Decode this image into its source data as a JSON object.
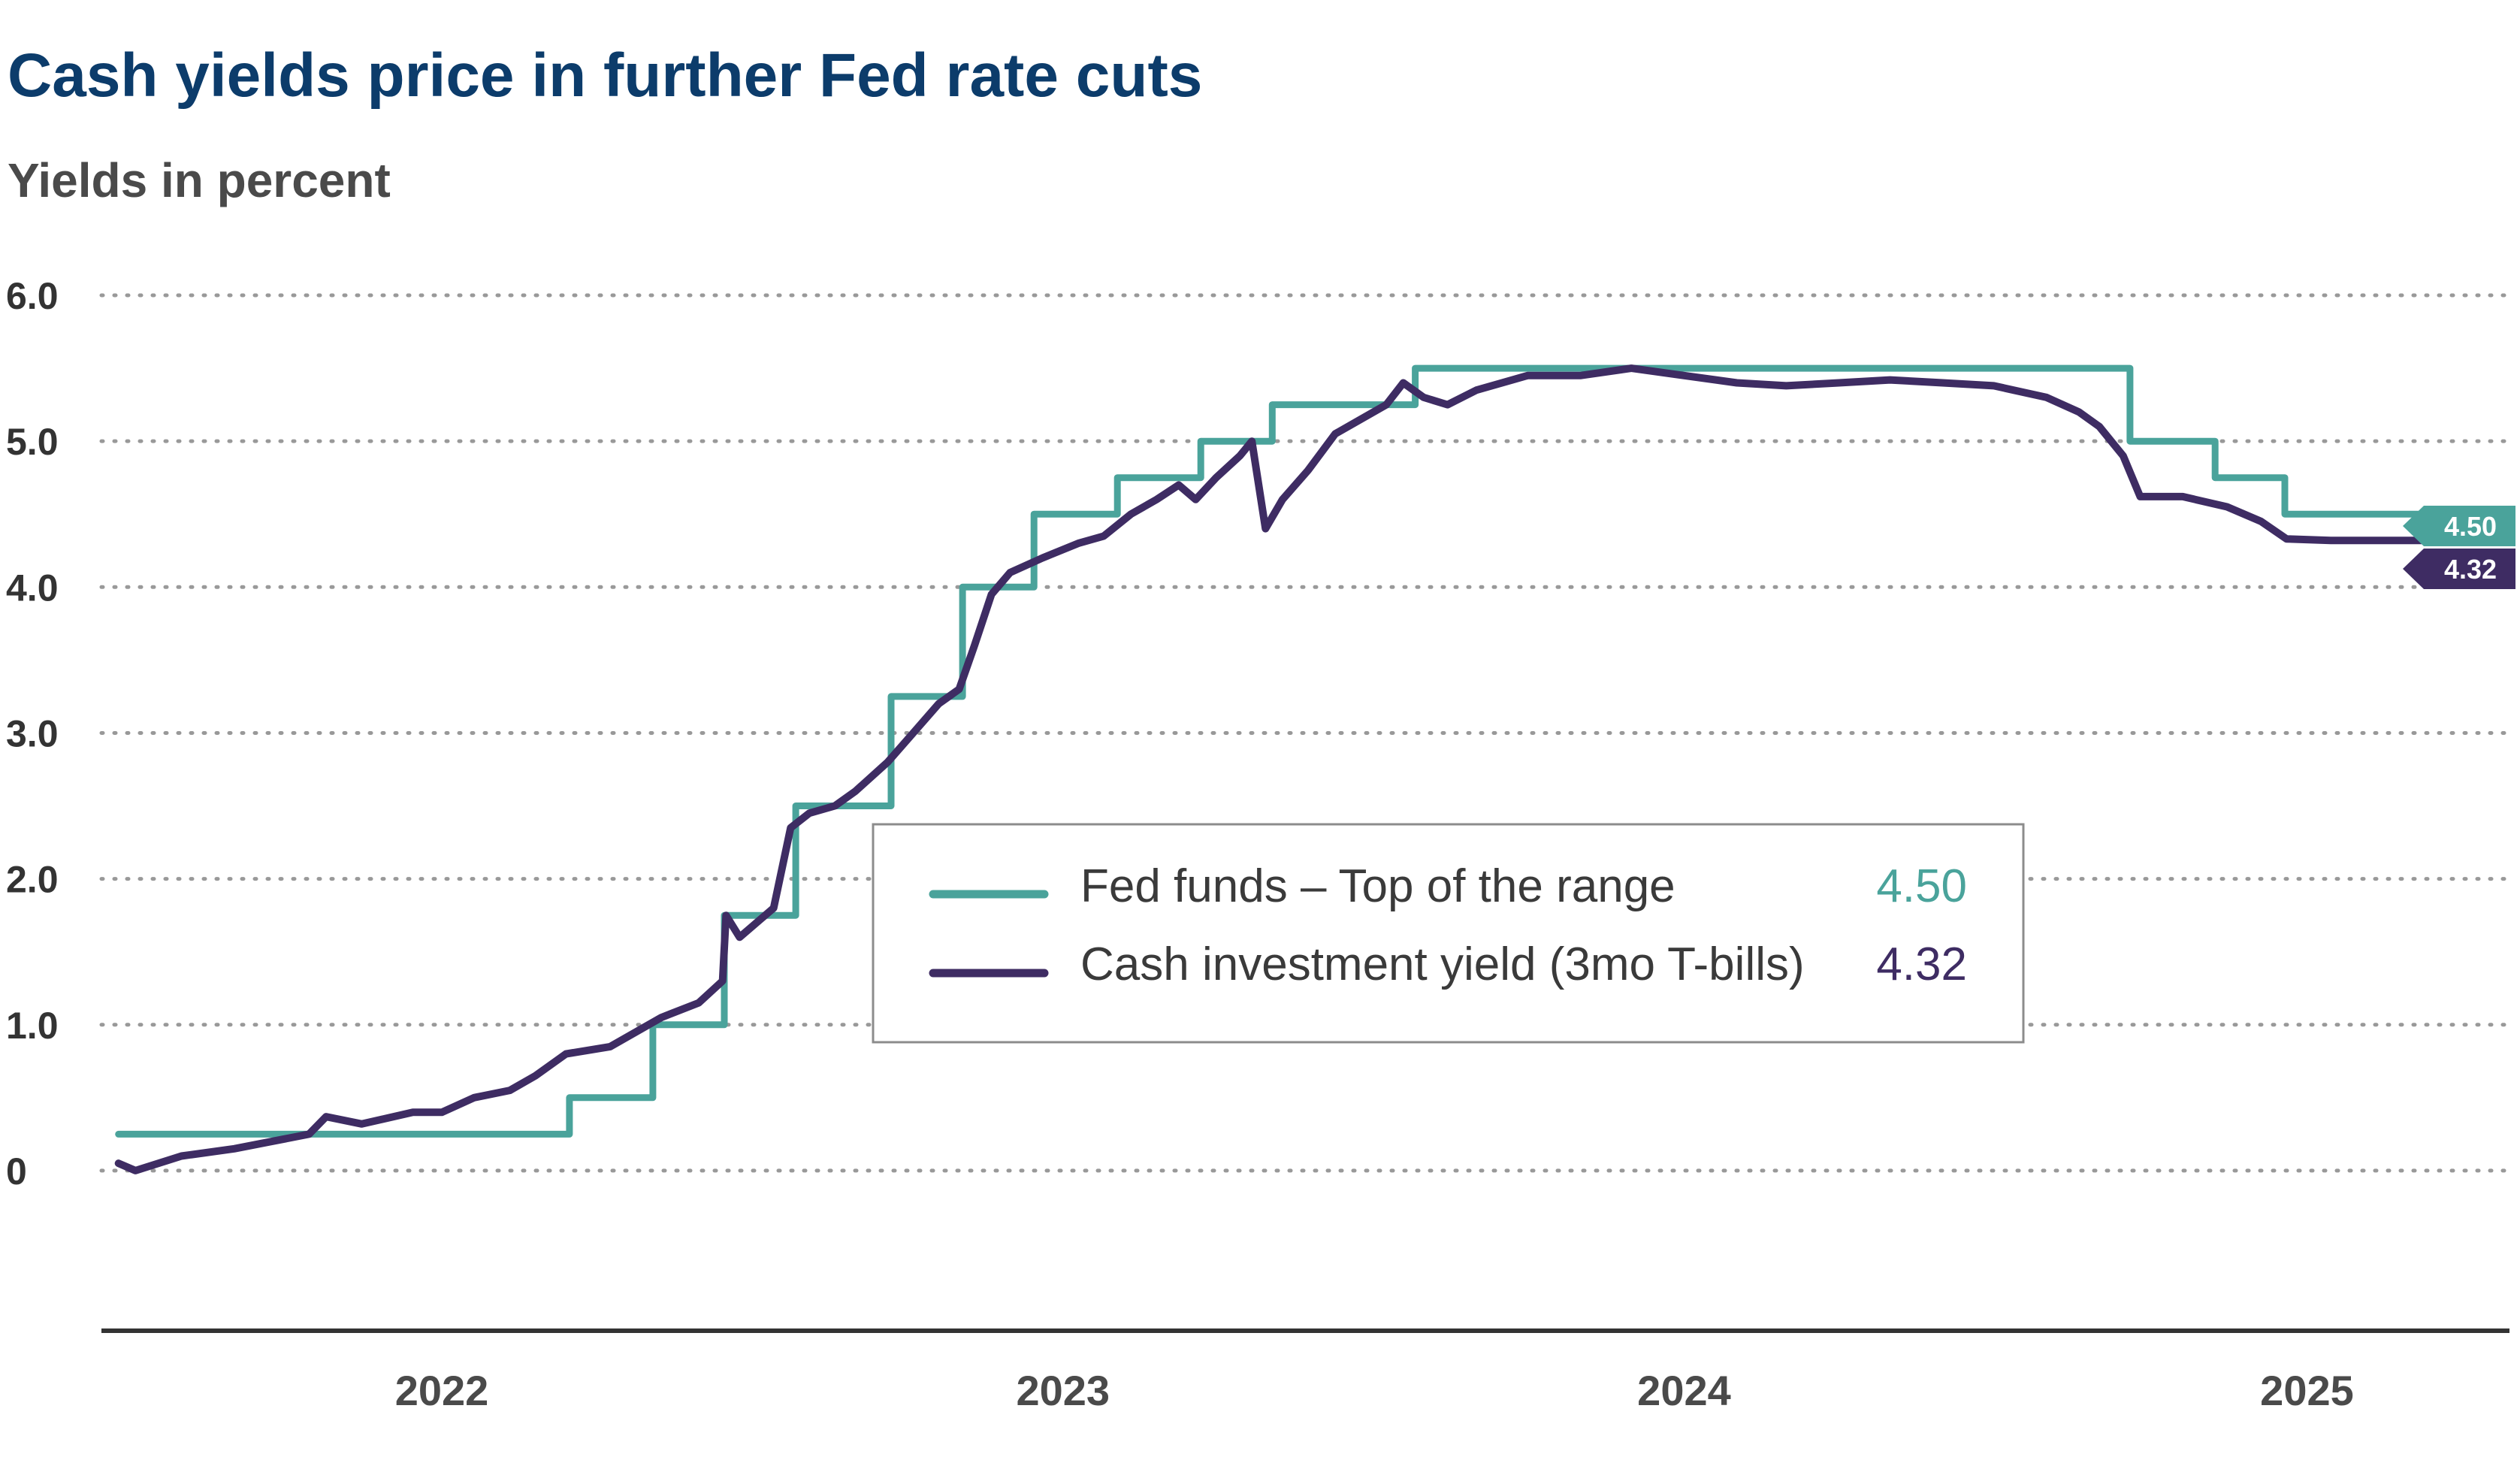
{
  "colors": {
    "fed": "#4AA39B",
    "tbill": "#3E2C63",
    "title": "#0C3C6B",
    "subtitle": "#4a4a4a",
    "grid": "#999999",
    "axis": "#333333"
  },
  "chart_data": {
    "type": "line",
    "title": "Cash yields price in further Fed rate cuts",
    "subtitle": "Yields in percent",
    "xlabel": "",
    "ylabel": "",
    "x_ticks": [
      {
        "label": "2022",
        "value": "2022-01-01"
      },
      {
        "label": "2023",
        "value": "2023-01-01"
      },
      {
        "label": "2024",
        "value": "2024-01-01"
      },
      {
        "label": "2025",
        "value": "2025-01-01"
      }
    ],
    "y_ticks": [
      {
        "label": "0",
        "value": 0
      },
      {
        "label": "1.0",
        "value": 1
      },
      {
        "label": "2.0",
        "value": 2
      },
      {
        "label": "3.0",
        "value": 3
      },
      {
        "label": "4.0",
        "value": 4
      },
      {
        "label": "5.0",
        "value": 5
      },
      {
        "label": "6.0",
        "value": 6
      }
    ],
    "xlim": [
      "2021-06-15",
      "2025-04-30"
    ],
    "ylim": [
      -0.5,
      6.0
    ],
    "grid": true,
    "legend_position": "center",
    "series": [
      {
        "name": "Fed funds – Top of the range",
        "latest": "4.50",
        "step": true,
        "points": [
          [
            "2021-06-25",
            0.25
          ],
          [
            "2022-03-17",
            0.5
          ],
          [
            "2022-05-05",
            1.0
          ],
          [
            "2022-06-16",
            1.75
          ],
          [
            "2022-07-28",
            2.5
          ],
          [
            "2022-09-22",
            3.25
          ],
          [
            "2022-11-03",
            4.0
          ],
          [
            "2022-12-15",
            4.5
          ],
          [
            "2023-02-02",
            4.75
          ],
          [
            "2023-03-23",
            5.0
          ],
          [
            "2023-05-04",
            5.25
          ],
          [
            "2023-07-27",
            5.5
          ],
          [
            "2024-09-19",
            5.0
          ],
          [
            "2024-11-08",
            4.75
          ],
          [
            "2024-12-19",
            4.5
          ],
          [
            "2025-03-31",
            4.5
          ]
        ]
      },
      {
        "name": "Cash investment yield (3mo T-bills)",
        "latest": "4.32",
        "step": false,
        "points": [
          [
            "2021-06-25",
            0.05
          ],
          [
            "2021-07-05",
            0.0
          ],
          [
            "2021-08-01",
            0.1
          ],
          [
            "2021-09-01",
            0.15
          ],
          [
            "2021-10-15",
            0.25
          ],
          [
            "2021-10-25",
            0.37
          ],
          [
            "2021-11-15",
            0.32
          ],
          [
            "2021-12-15",
            0.4
          ],
          [
            "2022-01-01",
            0.4
          ],
          [
            "2022-01-20",
            0.5
          ],
          [
            "2022-02-10",
            0.55
          ],
          [
            "2022-02-25",
            0.65
          ],
          [
            "2022-03-15",
            0.8
          ],
          [
            "2022-04-10",
            0.85
          ],
          [
            "2022-04-25",
            0.95
          ],
          [
            "2022-05-10",
            1.05
          ],
          [
            "2022-06-01",
            1.15
          ],
          [
            "2022-06-15",
            1.3
          ],
          [
            "2022-06-17",
            1.75
          ],
          [
            "2022-06-25",
            1.6
          ],
          [
            "2022-07-15",
            1.8
          ],
          [
            "2022-07-25",
            2.35
          ],
          [
            "2022-08-05",
            2.45
          ],
          [
            "2022-08-20",
            2.5
          ],
          [
            "2022-09-01",
            2.6
          ],
          [
            "2022-09-20",
            2.8
          ],
          [
            "2022-10-05",
            3.0
          ],
          [
            "2022-10-20",
            3.2
          ],
          [
            "2022-11-01",
            3.3
          ],
          [
            "2022-11-10",
            3.6
          ],
          [
            "2022-11-20",
            3.95
          ],
          [
            "2022-12-01",
            4.1
          ],
          [
            "2022-12-20",
            4.2
          ],
          [
            "2023-01-10",
            4.3
          ],
          [
            "2023-01-25",
            4.35
          ],
          [
            "2023-02-10",
            4.5
          ],
          [
            "2023-02-25",
            4.6
          ],
          [
            "2023-03-10",
            4.7
          ],
          [
            "2023-03-20",
            4.6
          ],
          [
            "2023-04-01",
            4.75
          ],
          [
            "2023-04-15",
            4.9
          ],
          [
            "2023-04-22",
            5.0
          ],
          [
            "2023-04-30",
            4.4
          ],
          [
            "2023-05-10",
            4.6
          ],
          [
            "2023-05-25",
            4.8
          ],
          [
            "2023-06-10",
            5.05
          ],
          [
            "2023-06-25",
            5.15
          ],
          [
            "2023-07-10",
            5.25
          ],
          [
            "2023-07-20",
            5.4
          ],
          [
            "2023-08-01",
            5.3
          ],
          [
            "2023-08-15",
            5.25
          ],
          [
            "2023-09-01",
            5.35
          ],
          [
            "2023-10-01",
            5.45
          ],
          [
            "2023-11-01",
            5.45
          ],
          [
            "2023-12-01",
            5.5
          ],
          [
            "2024-01-01",
            5.45
          ],
          [
            "2024-02-01",
            5.4
          ],
          [
            "2024-03-01",
            5.38
          ],
          [
            "2024-04-01",
            5.4
          ],
          [
            "2024-05-01",
            5.42
          ],
          [
            "2024-06-01",
            5.4
          ],
          [
            "2024-07-01",
            5.38
          ],
          [
            "2024-08-01",
            5.3
          ],
          [
            "2024-08-20",
            5.2
          ],
          [
            "2024-09-01",
            5.1
          ],
          [
            "2024-09-15",
            4.9
          ],
          [
            "2024-09-25",
            4.62
          ],
          [
            "2024-10-20",
            4.62
          ],
          [
            "2024-11-15",
            4.55
          ],
          [
            "2024-12-05",
            4.45
          ],
          [
            "2024-12-20",
            4.33
          ],
          [
            "2025-01-15",
            4.32
          ],
          [
            "2025-02-15",
            4.32
          ],
          [
            "2025-03-31",
            4.32
          ]
        ]
      }
    ]
  }
}
